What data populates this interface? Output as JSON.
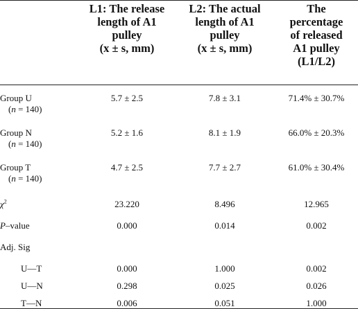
{
  "header": {
    "col1": [
      "L1: The release",
      "length of A1",
      "pulley",
      "(x ± s, mm)"
    ],
    "col2": [
      "L2: The actual",
      "length of A1",
      "pulley",
      "(x ± s, mm)"
    ],
    "col3": [
      "The",
      "percentage",
      "of released",
      "A1 pulley",
      "(L1/L2)"
    ]
  },
  "groups": [
    {
      "label": "Group U",
      "n_prefix": "(",
      "n_var": "n",
      "n_suffix": " = 140)",
      "l1": "5.7 ± 2.5",
      "l2": "7.8 ± 3.1",
      "pct": "71.4% ± 30.7%"
    },
    {
      "label": "Group N",
      "n_prefix": "(",
      "n_var": "n",
      "n_suffix": " = 140)",
      "l1": "5.2 ± 1.6",
      "l2": "8.1 ± 1.9",
      "pct": "66.0% ± 20.3%"
    },
    {
      "label": "Group T",
      "n_prefix": "(",
      "n_var": "n",
      "n_suffix": " = 140)",
      "l1": "4.7 ± 2.5",
      "l2": "7.7 ± 2.7",
      "pct": "61.0% ± 30.4%"
    }
  ],
  "chi2": {
    "symbol": "χ",
    "sup": "2",
    "l1": "23.220",
    "l2": "8.496",
    "pct": "12.965"
  },
  "pvalue": {
    "var": "P",
    "rest": "–value",
    "l1": "0.000",
    "l2": "0.014",
    "pct": "0.002"
  },
  "adj": {
    "label": "Adj. Sig"
  },
  "pairs": [
    {
      "label": "U—T",
      "l1": "0.000",
      "l2": "1.000",
      "pct": "0.002"
    },
    {
      "label": "U—N",
      "l1": "0.298",
      "l2": "0.025",
      "pct": "0.026"
    },
    {
      "label": "T—N",
      "l1": "0.006",
      "l2": "0.051",
      "pct": "1.000"
    }
  ]
}
